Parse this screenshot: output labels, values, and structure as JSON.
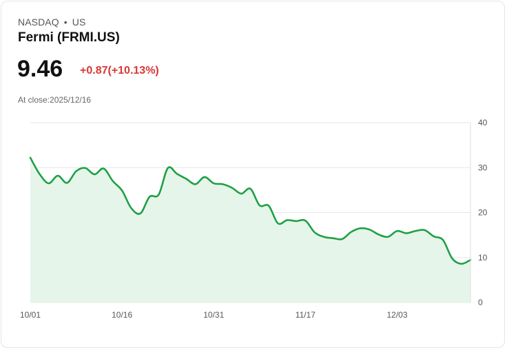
{
  "header": {
    "exchange": "NASDAQ",
    "separator": "•",
    "country": "US",
    "name": "Fermi (FRMI.US)",
    "price": "9.46",
    "change": "+0.87(+10.13%)",
    "close_label": "At close:2025/12/16"
  },
  "colors": {
    "line": "#1fa045",
    "fill": "#e6f5ea",
    "grid": "#e6e6e6",
    "change": "#d93636"
  },
  "chart_data": {
    "type": "area",
    "title": "",
    "xlabel": "",
    "ylabel": "",
    "ylim": [
      0,
      40
    ],
    "yticks": [
      "0",
      "10",
      "20",
      "30",
      "40"
    ],
    "xticks": [
      {
        "label": "10/01",
        "index": 0
      },
      {
        "label": "10/16",
        "index": 10
      },
      {
        "label": "10/31",
        "index": 20
      },
      {
        "label": "11/17",
        "index": 30
      },
      {
        "label": "12/03",
        "index": 40
      }
    ],
    "series": [
      {
        "name": "FRMI.US",
        "values": [
          32.2,
          28.6,
          26.5,
          28.2,
          26.6,
          29.2,
          29.9,
          28.5,
          29.8,
          27.0,
          24.9,
          21.0,
          19.8,
          23.5,
          24.0,
          29.9,
          28.6,
          27.5,
          26.3,
          27.9,
          26.5,
          26.3,
          25.5,
          24.2,
          25.3,
          21.6,
          21.5,
          17.6,
          18.3,
          18.1,
          18.2,
          15.6,
          14.6,
          14.3,
          14.1,
          15.7,
          16.5,
          16.2,
          15.1,
          14.6,
          15.9,
          15.4,
          15.9,
          16.1,
          14.7,
          13.9,
          9.8,
          8.6,
          9.46
        ]
      }
    ],
    "x_domain": [
      0,
      48
    ],
    "grid": true
  }
}
